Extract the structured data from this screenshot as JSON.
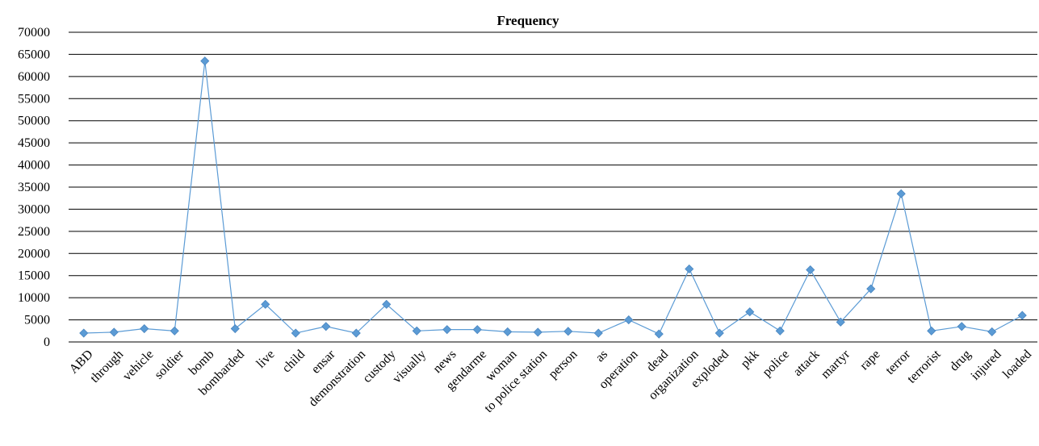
{
  "chart_data": {
    "type": "line",
    "title": "Frequency",
    "xlabel": "",
    "ylabel": "",
    "ylim": [
      0,
      70000
    ],
    "yticks": [
      0,
      5000,
      10000,
      15000,
      20000,
      25000,
      30000,
      35000,
      40000,
      45000,
      50000,
      55000,
      60000,
      65000,
      70000
    ],
    "grid": true,
    "legend": "none",
    "categories": [
      "ABD",
      "through",
      "vehicle",
      "soldier",
      "bomb",
      "bombarded",
      "live",
      "child",
      "ensar",
      "demonstration",
      "custody",
      "visually",
      "news",
      "gendarme",
      "woman",
      "to police station",
      "person",
      "as",
      "operation",
      "dead",
      "organization",
      "exploded",
      "pkk",
      "police",
      "attack",
      "martyr",
      "rape",
      "terror",
      "terrorist",
      "drug",
      "injured",
      "loaded"
    ],
    "series": [
      {
        "name": "",
        "color": "#5B9BD5",
        "values": [
          2000,
          2200,
          3000,
          2500,
          63500,
          3000,
          8500,
          2000,
          3500,
          2000,
          8500,
          2500,
          2800,
          2800,
          2300,
          2200,
          2400,
          2000,
          5000,
          1800,
          16500,
          2000,
          6800,
          2500,
          16300,
          4500,
          12000,
          33500,
          2500,
          3500,
          2300,
          6000
        ]
      }
    ]
  }
}
